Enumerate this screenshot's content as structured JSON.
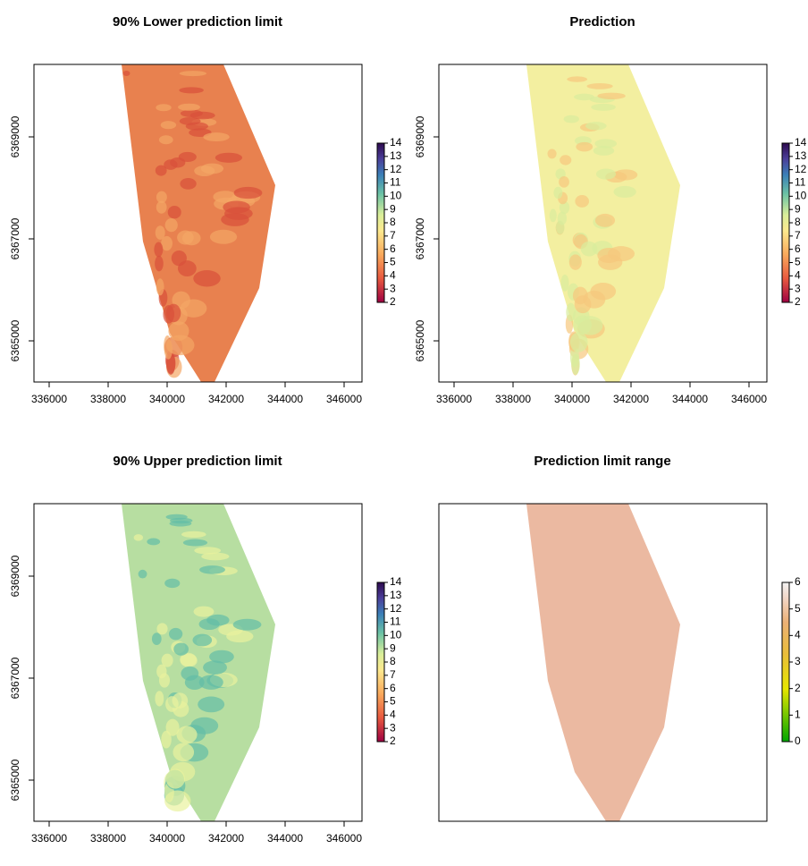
{
  "panels": [
    {
      "title": "90% Lower prediction limit",
      "xlim": [
        335485,
        346606
      ],
      "ylim": [
        6364193,
        6370421
      ],
      "xticks": [
        336000,
        338000,
        340000,
        342000,
        344000,
        346000
      ],
      "yticks": [
        6365000,
        6367000,
        6369000
      ],
      "legend_range": [
        2,
        14
      ],
      "legend_ticks": [
        2,
        3,
        4,
        5,
        6,
        7,
        8,
        9,
        10,
        11,
        12,
        13,
        14
      ]
    },
    {
      "title": "Prediction",
      "xlim": [
        335485,
        346606
      ],
      "ylim": [
        6364193,
        6370421
      ],
      "xticks": [
        336000,
        338000,
        340000,
        342000,
        344000,
        346000
      ],
      "yticks": [
        6365000,
        6367000,
        6369000
      ],
      "legend_range": [
        2,
        14
      ],
      "legend_ticks": [
        2,
        3,
        4,
        5,
        6,
        7,
        8,
        9,
        10,
        11,
        12,
        13,
        14
      ]
    },
    {
      "title": "90% Upper prediction limit",
      "xlim": [
        335485,
        346606
      ],
      "ylim": [
        6364193,
        6370421
      ],
      "xticks": [
        336000,
        338000,
        340000,
        342000,
        344000,
        346000
      ],
      "yticks": [
        6365000,
        6367000,
        6369000
      ],
      "legend_range": [
        2,
        14
      ],
      "legend_ticks": [
        2,
        3,
        4,
        5,
        6,
        7,
        8,
        9,
        10,
        11,
        12,
        13,
        14
      ]
    },
    {
      "title": "Prediction limit range",
      "legend_range": [
        0,
        6
      ],
      "legend_ticks": [
        0,
        1,
        2,
        3,
        4,
        5,
        6
      ]
    }
  ]
}
